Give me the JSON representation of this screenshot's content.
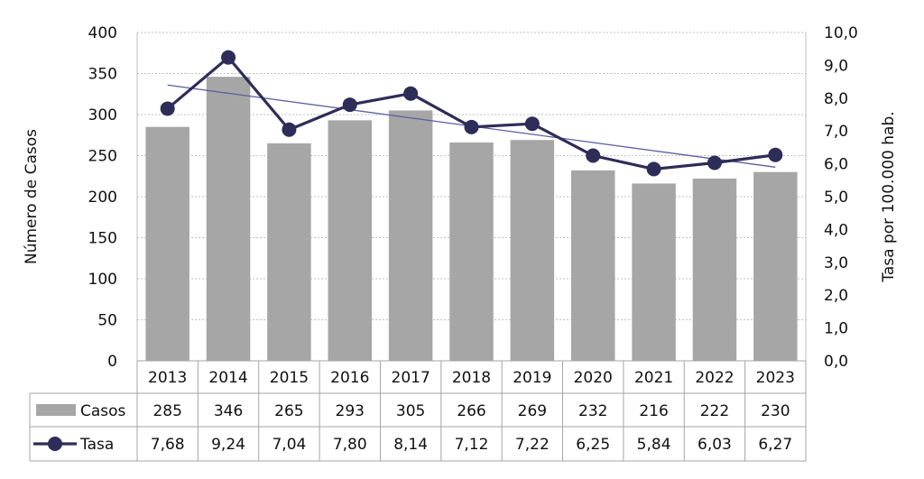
{
  "chart_data": {
    "type": "bar",
    "categories": [
      "2013",
      "2014",
      "2015",
      "2016",
      "2017",
      "2018",
      "2019",
      "2020",
      "2021",
      "2022",
      "2023"
    ],
    "series": [
      {
        "name": "Casos",
        "kind": "bar",
        "axis": "left",
        "values": [
          285,
          346,
          265,
          293,
          305,
          266,
          269,
          232,
          216,
          222,
          230
        ],
        "labels": [
          "285",
          "346",
          "265",
          "293",
          "305",
          "266",
          "269",
          "232",
          "216",
          "222",
          "230"
        ]
      },
      {
        "name": "Tasa",
        "kind": "line",
        "axis": "right",
        "values": [
          7.68,
          9.24,
          7.04,
          7.8,
          8.14,
          7.12,
          7.22,
          6.25,
          5.84,
          6.03,
          6.27
        ],
        "labels": [
          "7,68",
          "9,24",
          "7,04",
          "7,80",
          "8,14",
          "7,12",
          "7,22",
          "6,25",
          "5,84",
          "6,03",
          "6,27"
        ]
      }
    ],
    "trendline": {
      "series": "Tasa",
      "type": "linear"
    },
    "ylabel": "Número de Casos",
    "ylim": [
      0,
      400
    ],
    "yticks": [
      "0",
      "50",
      "100",
      "150",
      "200",
      "250",
      "300",
      "350",
      "400"
    ],
    "y2label": "Tasa por 100.000 hab.",
    "y2lim": [
      0,
      10
    ],
    "y2ticks": [
      "0,0",
      "1,0",
      "2,0",
      "3,0",
      "4,0",
      "5,0",
      "6,0",
      "7,0",
      "8,0",
      "9,0",
      "10,0"
    ],
    "grid": true,
    "legend": "data-table",
    "colors": {
      "bar": "#a6a6a6",
      "line": "#2e2c58",
      "trend": "#5a5fa0",
      "grid": "#bfbfbf",
      "table": "#a6a6a6"
    }
  }
}
